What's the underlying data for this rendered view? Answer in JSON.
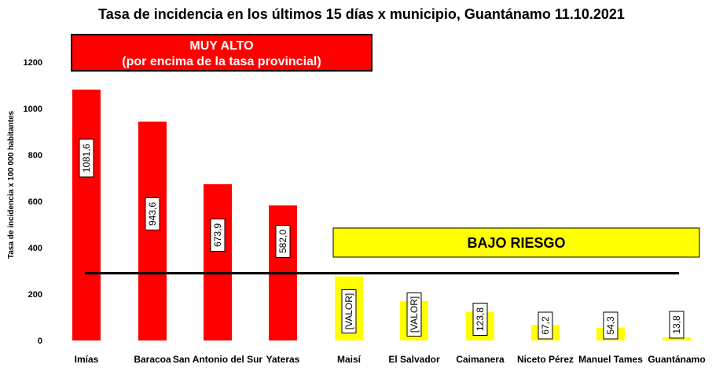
{
  "chart_data": {
    "type": "bar",
    "title": "Tasa de incidencia en los últimos 15 días x municipio, Guantánamo 11.10.2021",
    "ylabel": "Tasa de incidencia  x 100 000 habitantes",
    "xlabel": "",
    "ylim": [
      0,
      1200
    ],
    "yticks": [
      0,
      200,
      400,
      600,
      800,
      1000,
      1200
    ],
    "grid": false,
    "legend": "none",
    "categories": [
      "Imías",
      "Baracoa",
      "San Antonio del Sur",
      "Yateras",
      "Maisí",
      "El Salvador",
      "Caimanera",
      "Niceto Pérez",
      "Manuel Tames",
      "Guantánamo"
    ],
    "values": [
      1081.6,
      943.6,
      673.9,
      582.0,
      276,
      170,
      123.8,
      67.2,
      54.3,
      13.8
    ],
    "data_labels": [
      "1081,6",
      "943,6",
      "673,9",
      "582,0",
      "[VALOR]",
      "[VALOR]",
      "123,8",
      "67,2",
      "54,3",
      "13,8"
    ],
    "bar_colors": [
      "#ff0000",
      "#ff0000",
      "#ff0000",
      "#ff0000",
      "#ffff00",
      "#ffff00",
      "#ffff00",
      "#ffff00",
      "#ffff00",
      "#ffff00"
    ],
    "reference_line": {
      "value": 290,
      "color": "#000000"
    },
    "annotations": {
      "high": {
        "line1": "MUY ALTO",
        "line2": "(por encima de la tasa provincial)",
        "fill": "#ff0000",
        "text_color": "#ffffff"
      },
      "low": {
        "text": "BAJO RIESGO",
        "fill": "#ffff00",
        "text_color": "#000000"
      }
    }
  }
}
